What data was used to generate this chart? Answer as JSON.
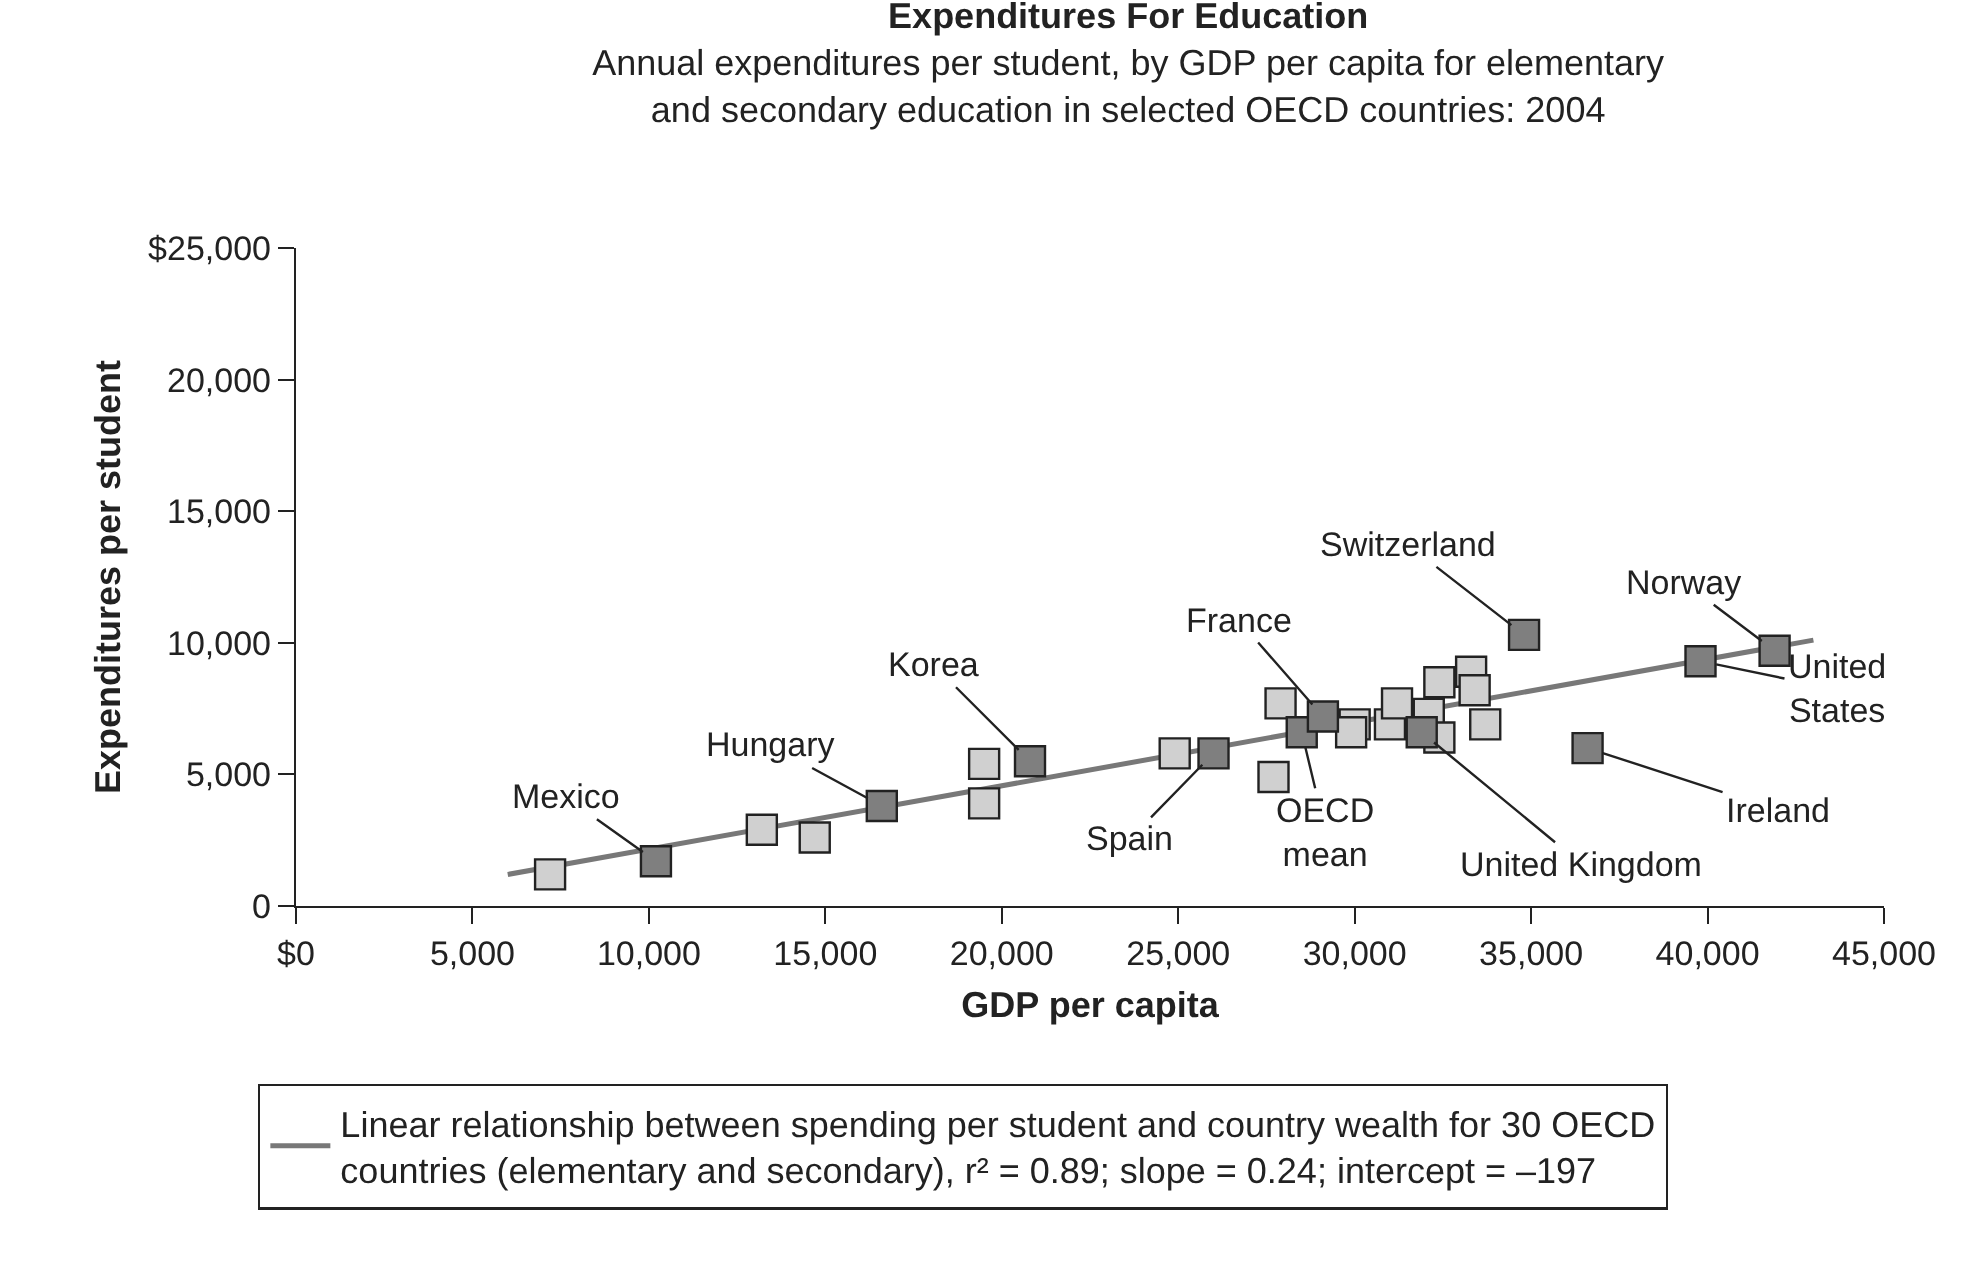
{
  "chart_data": {
    "type": "scatter",
    "title": "Expenditures For Education",
    "subtitle": "Annual expenditures per student, by GDP per capita for elementary and secondary education in selected OECD countries: 2004",
    "xlabel": "GDP per capita",
    "ylabel": "Expenditures per student",
    "xlim": [
      0,
      45000
    ],
    "xticks": [
      {
        "value": 0,
        "label": "$0"
      },
      {
        "value": 5000,
        "label": "5,000"
      },
      {
        "value": 10000,
        "label": "10,000"
      },
      {
        "value": 15000,
        "label": "15,000"
      },
      {
        "value": 20000,
        "label": "20,000"
      },
      {
        "value": 25000,
        "label": "25,000"
      },
      {
        "value": 30000,
        "label": "30,000"
      },
      {
        "value": 35000,
        "label": "35,000"
      },
      {
        "value": 40000,
        "label": "40,000"
      },
      {
        "value": 45000,
        "label": "45,000"
      }
    ],
    "ylim": [
      0,
      25000
    ],
    "yticks": [
      0,
      {
        "value": 5000,
        "label": "5,000"
      },
      {
        "value": 10000,
        "label": "10,000"
      },
      {
        "value": 15000,
        "label": "15,000"
      },
      {
        "value": 20000,
        "label": "20,000"
      },
      {
        "value": 25000,
        "label": "$25,000"
      }
    ],
    "grid": false,
    "marker": "square",
    "legend": "bottom",
    "series": [
      {
        "type": "line",
        "marker": "none",
        "name": "Linear relationship between spending per student and country wealth for 30 OECD countries (elementary and secondary), r² = 0.89; slope = 0.24; intercept = –197",
        "color": "#787878",
        "x": [
          6000,
          43000
        ],
        "values": [
          1200,
          10100
        ]
      },
      {
        "color": "#d0d0d0",
        "x": [
          7200,
          13200,
          14700,
          19500,
          19500,
          24900,
          27700,
          27900,
          30000,
          29900,
          31000,
          31200,
          32100,
          32400,
          32400,
          33300,
          33400,
          33700
        ],
        "values": [
          1200,
          2900,
          2600,
          5400,
          3900,
          5800,
          4900,
          7700,
          6900,
          6600,
          6900,
          7700,
          7300,
          6400,
          8500,
          8900,
          8200,
          6900
        ]
      },
      {
        "color": "#7f7f7f",
        "x": [
          10200,
          16600,
          20800,
          26000,
          28500,
          29100,
          31900,
          34800,
          36600,
          39800,
          41900
        ],
        "values": [
          1700,
          3800,
          5500,
          5800,
          6600,
          7200,
          6600,
          10300,
          6000,
          9300,
          9700
        ]
      }
    ],
    "annotations": [
      {
        "text": "Mexico",
        "x": 10200,
        "y": 1700
      },
      {
        "text": "Hungary",
        "x": 16600,
        "y": 3800
      },
      {
        "text": "Korea",
        "x": 20800,
        "y": 5500
      },
      {
        "text": "Spain",
        "x": 26000,
        "y": 5800
      },
      {
        "text": "OECD mean",
        "x": 28500,
        "y": 6600
      },
      {
        "text": "France",
        "x": 29100,
        "y": 7200
      },
      {
        "text": "Switzerland",
        "x": 34800,
        "y": 10300
      },
      {
        "text": "Norway",
        "x": 41900,
        "y": 9700
      },
      {
        "text": "United States",
        "x": 39800,
        "y": 9300
      },
      {
        "text": "Ireland",
        "x": 36600,
        "y": 6000
      },
      {
        "text": "United Kingdom",
        "x": 31900,
        "y": 6600
      }
    ]
  }
}
